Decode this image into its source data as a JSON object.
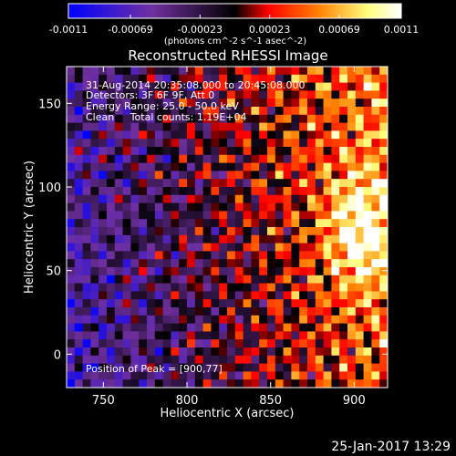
{
  "title": "Reconstructed RHESSI Image",
  "colorbar": {
    "ticks": [
      "-0.0011",
      "-0.00069",
      "-0.00023",
      "0.00023",
      "0.00069",
      "0.0011"
    ],
    "unit": "(photons cm^-2 s^-1 asec^-2)",
    "range": [
      -0.0011,
      0.0011
    ],
    "colors": [
      "#0000ff",
      "#7030a0",
      "#000000",
      "#ff0000",
      "#ff8000",
      "#ffff80",
      "#ffffff"
    ]
  },
  "info": {
    "time": "31-Aug-2014 20:35:08.000 to 20:45:08.000",
    "detectors": "Detectors: 3F 6F 9F, Att 0",
    "energy": "Energy Range: 25.0 - 50.0 keV",
    "clean": "Clean     Total counts: 1.19E+04",
    "peak": "Position of Peak = [900,77]"
  },
  "footer": "25-Jan-2017 13:29",
  "chart_data": {
    "type": "heatmap",
    "title": "Reconstructed RHESSI Image",
    "xlabel": "Heliocentric X (arcsec)",
    "ylabel": "Heliocentric Y (arcsec)",
    "xlim": [
      728,
      920
    ],
    "ylim": [
      -20,
      172
    ],
    "xticks": [
      750,
      800,
      850,
      900
    ],
    "yticks": [
      0,
      50,
      100,
      150
    ],
    "peak": [
      900,
      77
    ],
    "color_range": [
      -0.0011,
      0.0011
    ],
    "colorbar_label": "(photons cm^-2 s^-1 asec^-2)",
    "colorbar_ticks": [
      -0.0011,
      -0.00069,
      -0.00023,
      0.00023,
      0.00069,
      0.0011
    ]
  }
}
